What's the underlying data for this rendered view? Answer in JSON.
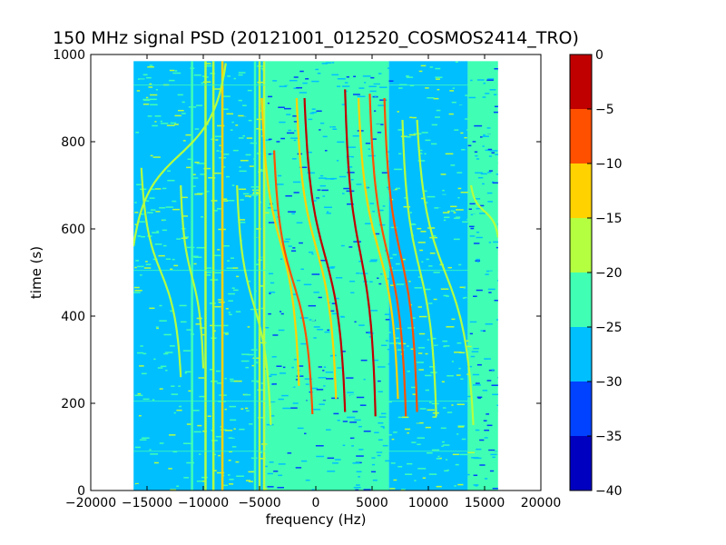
{
  "chart_data": {
    "type": "heatmap",
    "title": "150 MHz signal PSD (20121001_012520_COSMOS2414_TRO)",
    "xlabel": "frequency (Hz)",
    "ylabel": "time (s)",
    "xlim": [
      -20000,
      20000
    ],
    "ylim": [
      0,
      1000
    ],
    "x_ticks": [
      -20000,
      -15000,
      -10000,
      -5000,
      0,
      5000,
      10000,
      15000,
      20000
    ],
    "x_tick_labels": [
      "−20000",
      "−15000",
      "−10000",
      "−5000",
      "0",
      "5000",
      "10000",
      "15000",
      "20000"
    ],
    "y_ticks": [
      0,
      200,
      400,
      600,
      800,
      1000
    ],
    "y_tick_labels": [
      "0",
      "200",
      "400",
      "600",
      "800",
      "1000"
    ],
    "data_extent": {
      "x": [
        -16200,
        16200
      ],
      "y": [
        0,
        985
      ]
    },
    "background_levels": [
      {
        "x_from": -16200,
        "x_to": -12500,
        "level": -27
      },
      {
        "x_from": -12500,
        "x_to": -4500,
        "level": -28
      },
      {
        "x_from": -4500,
        "x_to": 6500,
        "level": -23
      },
      {
        "x_from": 6500,
        "x_to": 13500,
        "level": -28
      },
      {
        "x_from": 13500,
        "x_to": 16200,
        "level": -24
      }
    ],
    "vertical_lines": [
      {
        "x": -11000,
        "level": -22
      },
      {
        "x": -9800,
        "level": -18
      },
      {
        "x": -9100,
        "level": -20
      },
      {
        "x": -8300,
        "level": -15
      },
      {
        "x": -5400,
        "level": -22
      },
      {
        "x": -5000,
        "level": -20
      },
      {
        "x": -4600,
        "level": -16
      }
    ],
    "horizontal_lines": [
      {
        "y": 930,
        "level": -24
      },
      {
        "y": 505,
        "level": -24
      },
      {
        "y": 205,
        "level": -24
      },
      {
        "y": 90,
        "level": -24
      }
    ],
    "doppler_traces": [
      {
        "x_start": -8000,
        "y_start": 980,
        "x_end": -16200,
        "y_end": 560,
        "level": -18
      },
      {
        "x_start": -16200,
        "y_start": 580,
        "x_end": -17000,
        "y_end": 500,
        "level": -16
      },
      {
        "x_start": -15500,
        "y_start": 740,
        "x_end": -12000,
        "y_end": 260,
        "level": -18
      },
      {
        "x_start": -12000,
        "y_start": 700,
        "x_end": -10000,
        "y_end": 280,
        "level": -20
      },
      {
        "x_start": -7000,
        "y_start": 700,
        "x_end": -4000,
        "y_end": 150,
        "level": -18
      },
      {
        "x_start": -4800,
        "y_start": 900,
        "x_end": -1500,
        "y_end": 240,
        "level": -12
      },
      {
        "x_start": -3700,
        "y_start": 780,
        "x_end": -300,
        "y_end": 175,
        "level": -9
      },
      {
        "x_start": -1700,
        "y_start": 900,
        "x_end": 1800,
        "y_end": 210,
        "level": -14
      },
      {
        "x_start": -1000,
        "y_start": 900,
        "x_end": 2600,
        "y_end": 180,
        "level": -5
      },
      {
        "x_start": 2600,
        "y_start": 920,
        "x_end": 5300,
        "y_end": 170,
        "level": -3
      },
      {
        "x_start": 3800,
        "y_start": 900,
        "x_end": 7300,
        "y_end": 210,
        "level": -14
      },
      {
        "x_start": 4800,
        "y_start": 910,
        "x_end": 8000,
        "y_end": 170,
        "level": -8
      },
      {
        "x_start": 6100,
        "y_start": 900,
        "x_end": 9000,
        "y_end": 180,
        "level": -10
      },
      {
        "x_start": 7700,
        "y_start": 850,
        "x_end": 10700,
        "y_end": 170,
        "level": -16
      },
      {
        "x_start": 9000,
        "y_start": 850,
        "x_end": 14000,
        "y_end": 150,
        "level": -20
      },
      {
        "x_start": 13800,
        "y_start": 700,
        "x_end": 16200,
        "y_end": 580,
        "level": -16
      }
    ],
    "colorbar": {
      "colormap": "jet",
      "levels": [
        -40,
        -35,
        -30,
        -25,
        -20,
        -15,
        -10,
        -5,
        0
      ],
      "tick_labels": [
        "0",
        "−5",
        "−10",
        "−15",
        "−20",
        "−25",
        "−30",
        "−35",
        "−40"
      ],
      "band_colors": [
        "#0000c0",
        "#0042ff",
        "#00bfff",
        "#40ffb4",
        "#b4ff40",
        "#ffd200",
        "#ff5000",
        "#c00000"
      ]
    },
    "grid": false,
    "legend": "none"
  }
}
